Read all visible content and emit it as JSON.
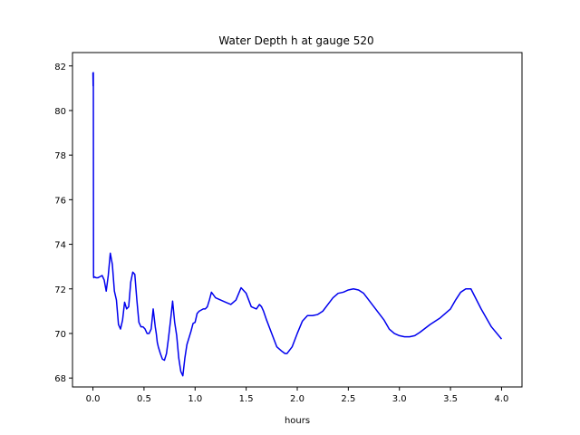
{
  "chart_data": {
    "type": "line",
    "title": "Water Depth h at gauge 520",
    "xlabel": "hours",
    "ylabel": "",
    "xlim": [
      -0.2,
      4.2
    ],
    "ylim": [
      67.6,
      82.6
    ],
    "xticks": [
      0.0,
      0.5,
      1.0,
      1.5,
      2.0,
      2.5,
      3.0,
      3.5,
      4.0
    ],
    "xtick_labels": [
      "0.0",
      "0.5",
      "1.0",
      "1.5",
      "2.0",
      "2.5",
      "3.0",
      "3.5",
      "4.0"
    ],
    "yticks": [
      68,
      70,
      72,
      74,
      76,
      78,
      80,
      82
    ],
    "ytick_labels": [
      "68",
      "70",
      "72",
      "74",
      "76",
      "78",
      "80",
      "82"
    ],
    "grid": false,
    "series": [
      {
        "color": "#0000ee",
        "x": [
          0.0,
          0.002,
          0.004,
          0.006,
          0.008,
          0.01,
          0.03,
          0.05,
          0.07,
          0.09,
          0.11,
          0.13,
          0.15,
          0.17,
          0.19,
          0.21,
          0.23,
          0.25,
          0.27,
          0.29,
          0.31,
          0.33,
          0.35,
          0.37,
          0.39,
          0.41,
          0.43,
          0.45,
          0.47,
          0.49,
          0.51,
          0.53,
          0.55,
          0.57,
          0.59,
          0.61,
          0.62,
          0.63,
          0.64,
          0.66,
          0.68,
          0.7,
          0.72,
          0.74,
          0.76,
          0.78,
          0.8,
          0.82,
          0.84,
          0.86,
          0.88,
          0.9,
          0.92,
          0.94,
          0.96,
          0.98,
          1.0,
          1.02,
          1.04,
          1.06,
          1.08,
          1.1,
          1.12,
          1.14,
          1.16,
          1.2,
          1.25,
          1.3,
          1.35,
          1.4,
          1.45,
          1.5,
          1.55,
          1.6,
          1.63,
          1.65,
          1.67,
          1.7,
          1.75,
          1.8,
          1.85,
          1.88,
          1.9,
          1.95,
          2.0,
          2.05,
          2.1,
          2.15,
          2.2,
          2.25,
          2.3,
          2.35,
          2.4,
          2.45,
          2.5,
          2.55,
          2.6,
          2.65,
          2.7,
          2.75,
          2.8,
          2.85,
          2.9,
          2.95,
          3.0,
          3.05,
          3.1,
          3.15,
          3.2,
          3.3,
          3.4,
          3.5,
          3.55,
          3.6,
          3.65,
          3.7,
          3.8,
          3.9,
          4.0
        ],
        "y": [
          81.7,
          81.1,
          81.7,
          72.6,
          72.5,
          72.55,
          72.5,
          72.5,
          72.55,
          72.6,
          72.4,
          71.9,
          72.6,
          73.6,
          73.1,
          71.9,
          71.5,
          70.4,
          70.2,
          70.6,
          71.4,
          71.1,
          71.2,
          72.3,
          72.75,
          72.65,
          71.5,
          70.5,
          70.3,
          70.3,
          70.2,
          70.0,
          70.0,
          70.2,
          71.1,
          70.3,
          70.0,
          69.6,
          69.4,
          69.1,
          68.85,
          68.8,
          69.1,
          69.8,
          70.6,
          71.45,
          70.5,
          69.9,
          68.9,
          68.3,
          68.1,
          68.9,
          69.5,
          69.8,
          70.1,
          70.45,
          70.5,
          70.9,
          71.0,
          71.05,
          71.1,
          71.1,
          71.2,
          71.5,
          71.85,
          71.6,
          71.5,
          71.4,
          71.3,
          71.5,
          72.05,
          71.8,
          71.2,
          71.1,
          71.3,
          71.2,
          71.0,
          70.6,
          70.0,
          69.4,
          69.2,
          69.1,
          69.1,
          69.4,
          70.0,
          70.55,
          70.8,
          70.8,
          70.85,
          71.0,
          71.3,
          71.6,
          71.8,
          71.85,
          71.95,
          72.0,
          71.95,
          71.8,
          71.5,
          71.2,
          70.9,
          70.6,
          70.2,
          70.0,
          69.9,
          69.85,
          69.85,
          69.9,
          70.05,
          70.4,
          70.7,
          71.1,
          71.5,
          71.85,
          72.0,
          72.0,
          71.1,
          70.3,
          69.75
        ]
      }
    ]
  }
}
